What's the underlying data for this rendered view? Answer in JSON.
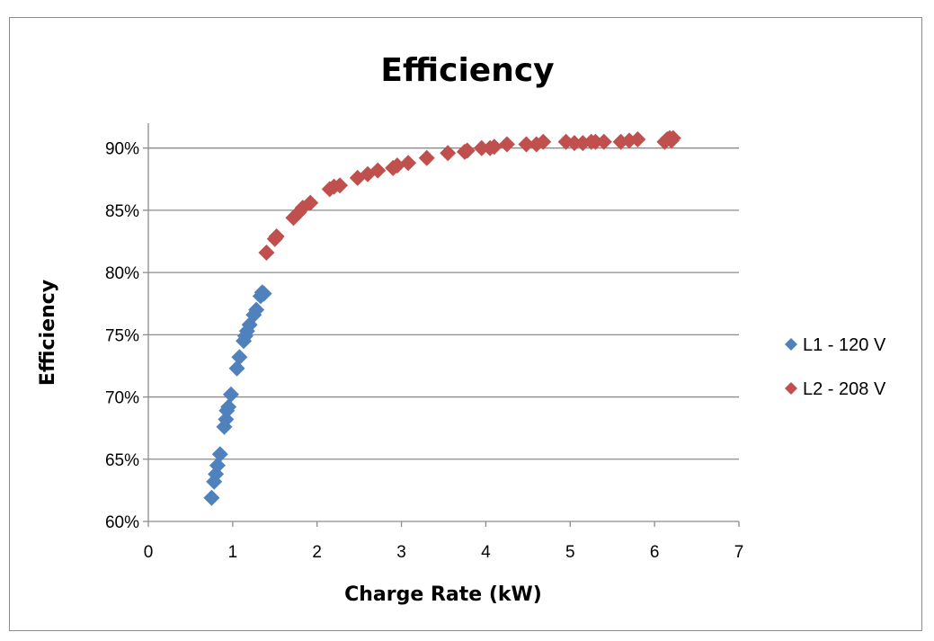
{
  "chart_data": {
    "type": "scatter",
    "title": "Efficiency",
    "xlabel": "Charge Rate (kW)",
    "ylabel": "Efficiency",
    "xlim": [
      0,
      7
    ],
    "ylim": [
      0.6,
      0.92
    ],
    "x_ticks": [
      0,
      1,
      2,
      3,
      4,
      5,
      6,
      7
    ],
    "x_tick_labels": [
      "0",
      "1",
      "2",
      "3",
      "4",
      "5",
      "6",
      "7"
    ],
    "y_ticks": [
      0.6,
      0.65,
      0.7,
      0.75,
      0.8,
      0.85,
      0.9
    ],
    "y_tick_labels": [
      "60%",
      "65%",
      "70%",
      "75%",
      "80%",
      "85%",
      "90%"
    ],
    "grid": "horizontal",
    "legend_position": "right",
    "series": [
      {
        "name": "L1 - 120 V",
        "color": "#4f81bd",
        "marker": "diamond",
        "points": [
          [
            0.75,
            0.619
          ],
          [
            0.78,
            0.632
          ],
          [
            0.8,
            0.638
          ],
          [
            0.82,
            0.645
          ],
          [
            0.85,
            0.654
          ],
          [
            0.9,
            0.676
          ],
          [
            0.92,
            0.682
          ],
          [
            0.93,
            0.689
          ],
          [
            0.95,
            0.692
          ],
          [
            0.98,
            0.702
          ],
          [
            1.05,
            0.723
          ],
          [
            1.08,
            0.732
          ],
          [
            1.13,
            0.745
          ],
          [
            1.15,
            0.749
          ],
          [
            1.17,
            0.753
          ],
          [
            1.2,
            0.758
          ],
          [
            1.25,
            0.766
          ],
          [
            1.28,
            0.77
          ],
          [
            1.33,
            0.781
          ],
          [
            1.35,
            0.784
          ],
          [
            1.37,
            0.783
          ]
        ]
      },
      {
        "name": "L2 - 208 V",
        "color": "#c0504d",
        "marker": "diamond",
        "points": [
          [
            1.4,
            0.816
          ],
          [
            1.5,
            0.827
          ],
          [
            1.52,
            0.829
          ],
          [
            1.72,
            0.844
          ],
          [
            1.78,
            0.848
          ],
          [
            1.83,
            0.852
          ],
          [
            1.92,
            0.856
          ],
          [
            2.15,
            0.867
          ],
          [
            2.2,
            0.869
          ],
          [
            2.27,
            0.87
          ],
          [
            2.48,
            0.876
          ],
          [
            2.6,
            0.879
          ],
          [
            2.72,
            0.882
          ],
          [
            2.9,
            0.884
          ],
          [
            2.95,
            0.886
          ],
          [
            3.08,
            0.888
          ],
          [
            3.3,
            0.892
          ],
          [
            3.55,
            0.896
          ],
          [
            3.75,
            0.897
          ],
          [
            3.78,
            0.898
          ],
          [
            3.95,
            0.9
          ],
          [
            4.05,
            0.9
          ],
          [
            4.1,
            0.901
          ],
          [
            4.25,
            0.903
          ],
          [
            4.48,
            0.903
          ],
          [
            4.6,
            0.903
          ],
          [
            4.68,
            0.905
          ],
          [
            4.95,
            0.905
          ],
          [
            5.05,
            0.904
          ],
          [
            5.15,
            0.904
          ],
          [
            5.25,
            0.905
          ],
          [
            5.3,
            0.905
          ],
          [
            5.4,
            0.905
          ],
          [
            5.6,
            0.905
          ],
          [
            5.7,
            0.906
          ],
          [
            5.8,
            0.907
          ],
          [
            6.12,
            0.905
          ],
          [
            6.15,
            0.907
          ],
          [
            6.18,
            0.908
          ],
          [
            6.2,
            0.906
          ],
          [
            6.22,
            0.908
          ]
        ]
      }
    ]
  }
}
